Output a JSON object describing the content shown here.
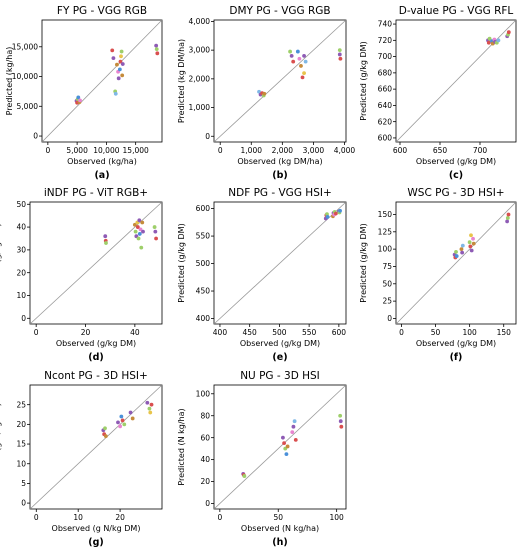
{
  "chart_data": [
    {
      "panel": "(a)",
      "type": "scatter",
      "title": "FY PG - VGG RGB",
      "xlabel": "Observed (kg/ha)",
      "ylabel": "Predicted (kg/ha)",
      "xlim": [
        -1000,
        19500
      ],
      "ylim": [
        -1000,
        19500
      ],
      "xticks": [
        "0",
        "5,000",
        "10,000",
        "15,000"
      ],
      "xtick_values": [
        0,
        5000,
        10000,
        15000
      ],
      "yticks": [
        "0",
        "5,000",
        "10,000",
        "15,000"
      ],
      "ytick_values": [
        0,
        5000,
        10000,
        15000
      ],
      "reference_line": "1:1",
      "points": [
        {
          "x": 4900,
          "y": 5900,
          "c": "#8e5bb5"
        },
        {
          "x": 5000,
          "y": 5600,
          "c": "#d94f4f"
        },
        {
          "x": 5100,
          "y": 6200,
          "c": "#9ecf6a"
        },
        {
          "x": 5200,
          "y": 6500,
          "c": "#4a90d9"
        },
        {
          "x": 5400,
          "y": 5700,
          "c": "#c58b3b"
        },
        {
          "x": 5500,
          "y": 6000,
          "c": "#e884d0"
        },
        {
          "x": 11000,
          "y": 14400,
          "c": "#d94f4f"
        },
        {
          "x": 11200,
          "y": 13100,
          "c": "#8e5bb5"
        },
        {
          "x": 11500,
          "y": 7500,
          "c": "#9ecf6a"
        },
        {
          "x": 11600,
          "y": 7100,
          "c": "#7fb8e6"
        },
        {
          "x": 11800,
          "y": 12000,
          "c": "#c58b3b"
        },
        {
          "x": 12000,
          "y": 10800,
          "c": "#e884d0"
        },
        {
          "x": 12100,
          "y": 9700,
          "c": "#8e5bb5"
        },
        {
          "x": 12300,
          "y": 11200,
          "c": "#4a90d9"
        },
        {
          "x": 12400,
          "y": 12500,
          "c": "#d94f4f"
        },
        {
          "x": 12500,
          "y": 13400,
          "c": "#e8c44a"
        },
        {
          "x": 12600,
          "y": 14200,
          "c": "#9ecf6a"
        },
        {
          "x": 12700,
          "y": 10200,
          "c": "#c58b3b"
        },
        {
          "x": 12800,
          "y": 12100,
          "c": "#8e5bb5"
        },
        {
          "x": 18500,
          "y": 15200,
          "c": "#8e5bb5"
        },
        {
          "x": 18600,
          "y": 14600,
          "c": "#9ecf6a"
        },
        {
          "x": 18700,
          "y": 13900,
          "c": "#d94f4f"
        }
      ]
    },
    {
      "panel": "(b)",
      "type": "scatter",
      "title": "DMY PG - VGG RGB",
      "xlabel": "Observed (kg DM/ha)",
      "ylabel": "Predicted (kg DM/ha)",
      "xlim": [
        -200,
        4050
      ],
      "ylim": [
        -200,
        4050
      ],
      "xticks": [
        "0",
        "1,000",
        "2,000",
        "3,000",
        "4,000"
      ],
      "xtick_values": [
        0,
        1000,
        2000,
        3000,
        4000
      ],
      "yticks": [
        "0",
        "1,000",
        "2,000",
        "3,000",
        "4,000"
      ],
      "ytick_values": [
        0,
        1000,
        2000,
        3000,
        4000
      ],
      "reference_line": "1:1",
      "points": [
        {
          "x": 1250,
          "y": 1550,
          "c": "#7fb8e6"
        },
        {
          "x": 1300,
          "y": 1450,
          "c": "#8e5bb5"
        },
        {
          "x": 1350,
          "y": 1500,
          "c": "#d94f4f"
        },
        {
          "x": 1400,
          "y": 1420,
          "c": "#9ecf6a"
        },
        {
          "x": 1420,
          "y": 1480,
          "c": "#c58b3b"
        },
        {
          "x": 2250,
          "y": 2950,
          "c": "#9ecf6a"
        },
        {
          "x": 2300,
          "y": 2800,
          "c": "#8e5bb5"
        },
        {
          "x": 2350,
          "y": 2600,
          "c": "#d94f4f"
        },
        {
          "x": 2500,
          "y": 2950,
          "c": "#4a90d9"
        },
        {
          "x": 2550,
          "y": 2700,
          "c": "#e884d0"
        },
        {
          "x": 2600,
          "y": 2450,
          "c": "#c58b3b"
        },
        {
          "x": 2650,
          "y": 2050,
          "c": "#d94f4f"
        },
        {
          "x": 2700,
          "y": 2200,
          "c": "#e8c44a"
        },
        {
          "x": 2700,
          "y": 2800,
          "c": "#8e5bb5"
        },
        {
          "x": 2750,
          "y": 2600,
          "c": "#7fb8e6"
        },
        {
          "x": 3850,
          "y": 3000,
          "c": "#9ecf6a"
        },
        {
          "x": 3850,
          "y": 2850,
          "c": "#8e5bb5"
        },
        {
          "x": 3870,
          "y": 2700,
          "c": "#d94f4f"
        }
      ]
    },
    {
      "panel": "(c)",
      "type": "scatter",
      "title": "D-value PG - VGG RFL",
      "xlabel": "Observed (g/kg DM)",
      "ylabel": "Predicted (g/kg DM)",
      "xlim": [
        595,
        745
      ],
      "ylim": [
        595,
        745
      ],
      "xticks": [
        "600",
        "650",
        "700"
      ],
      "xtick_values": [
        600,
        650,
        700
      ],
      "yticks": [
        "600",
        "620",
        "640",
        "660",
        "680",
        "700",
        "720",
        "740"
      ],
      "ytick_values": [
        600,
        620,
        640,
        660,
        680,
        700,
        720,
        740
      ],
      "reference_line": "1:1",
      "points": [
        {
          "x": 710,
          "y": 720,
          "c": "#8e5bb5"
        },
        {
          "x": 711,
          "y": 717,
          "c": "#d94f4f"
        },
        {
          "x": 712,
          "y": 722,
          "c": "#9ecf6a"
        },
        {
          "x": 715,
          "y": 719,
          "c": "#4a90d9"
        },
        {
          "x": 716,
          "y": 716,
          "c": "#c58b3b"
        },
        {
          "x": 718,
          "y": 721,
          "c": "#e884d0"
        },
        {
          "x": 719,
          "y": 718,
          "c": "#8e5bb5"
        },
        {
          "x": 721,
          "y": 717,
          "c": "#9ecf6a"
        },
        {
          "x": 723,
          "y": 720,
          "c": "#7fb8e6"
        },
        {
          "x": 734,
          "y": 725,
          "c": "#8e5bb5"
        },
        {
          "x": 735,
          "y": 727,
          "c": "#9ecf6a"
        },
        {
          "x": 736,
          "y": 730,
          "c": "#d94f4f"
        }
      ]
    },
    {
      "panel": "(d)",
      "type": "scatter",
      "title": "iNDF PG - ViT RGB+",
      "xlabel": "Observed (g/kg DM)",
      "ylabel": "Predicted (g/kg DM)",
      "xlim": [
        -2.5,
        51
      ],
      "ylim": [
        -2.5,
        51
      ],
      "xticks": [
        "0",
        "20",
        "40"
      ],
      "xtick_values": [
        0,
        20,
        40
      ],
      "yticks": [
        "0",
        "10",
        "20",
        "30",
        "40",
        "50"
      ],
      "ytick_values": [
        0,
        10,
        20,
        30,
        40,
        50
      ],
      "reference_line": "1:1",
      "points": [
        {
          "x": 28,
          "y": 36,
          "c": "#8e5bb5"
        },
        {
          "x": 28.2,
          "y": 34,
          "c": "#d94f4f"
        },
        {
          "x": 28.3,
          "y": 33,
          "c": "#9ecf6a"
        },
        {
          "x": 40,
          "y": 41,
          "c": "#c58b3b"
        },
        {
          "x": 40.3,
          "y": 38,
          "c": "#9ecf6a"
        },
        {
          "x": 40.6,
          "y": 36,
          "c": "#8e5bb5"
        },
        {
          "x": 41,
          "y": 42,
          "c": "#e8c44a"
        },
        {
          "x": 41.2,
          "y": 40,
          "c": "#d94f4f"
        },
        {
          "x": 41.5,
          "y": 35,
          "c": "#9ecf6a"
        },
        {
          "x": 41.8,
          "y": 43,
          "c": "#8e5bb5"
        },
        {
          "x": 42,
          "y": 37,
          "c": "#4a90d9"
        },
        {
          "x": 42.3,
          "y": 39,
          "c": "#e884d0"
        },
        {
          "x": 42.6,
          "y": 31,
          "c": "#9ecf6a"
        },
        {
          "x": 43,
          "y": 42,
          "c": "#c58b3b"
        },
        {
          "x": 43.3,
          "y": 38,
          "c": "#8e5bb5"
        },
        {
          "x": 48,
          "y": 40,
          "c": "#9ecf6a"
        },
        {
          "x": 48.3,
          "y": 38,
          "c": "#8e5bb5"
        },
        {
          "x": 48.6,
          "y": 35,
          "c": "#d94f4f"
        }
      ]
    },
    {
      "panel": "(e)",
      "type": "scatter",
      "title": "NDF PG - VGG HSI+",
      "xlabel": "Observed (g/kg DM)",
      "ylabel": "Predicted (g/kg DM)",
      "xlim": [
        390,
        612
      ],
      "ylim": [
        390,
        612
      ],
      "xticks": [
        "400",
        "450",
        "500",
        "550",
        "600"
      ],
      "xtick_values": [
        400,
        450,
        500,
        550,
        600
      ],
      "yticks": [
        "400",
        "450",
        "500",
        "550",
        "600"
      ],
      "ytick_values": [
        400,
        450,
        500,
        550,
        600
      ],
      "reference_line": "1:1",
      "points": [
        {
          "x": 578,
          "y": 582,
          "c": "#8e5bb5"
        },
        {
          "x": 579,
          "y": 588,
          "c": "#d94f4f"
        },
        {
          "x": 580,
          "y": 590,
          "c": "#9ecf6a"
        },
        {
          "x": 581,
          "y": 585,
          "c": "#4a90d9"
        },
        {
          "x": 590,
          "y": 586,
          "c": "#c58b3b"
        },
        {
          "x": 591,
          "y": 592,
          "c": "#8e5bb5"
        },
        {
          "x": 592,
          "y": 589,
          "c": "#e884d0"
        },
        {
          "x": 593,
          "y": 594,
          "c": "#9ecf6a"
        },
        {
          "x": 595,
          "y": 591,
          "c": "#d94f4f"
        },
        {
          "x": 600,
          "y": 595,
          "c": "#8e5bb5"
        },
        {
          "x": 601,
          "y": 593,
          "c": "#9ecf6a"
        },
        {
          "x": 602,
          "y": 596,
          "c": "#4a90d9"
        }
      ]
    },
    {
      "panel": "(f)",
      "type": "scatter",
      "title": "WSC PG - 3D HSI+",
      "xlabel": "Observed (g/kg DM)",
      "ylabel": "Predicted (g/kg DM)",
      "xlim": [
        -8,
        168
      ],
      "ylim": [
        -8,
        168
      ],
      "xticks": [
        "0",
        "50",
        "100",
        "150"
      ],
      "xtick_values": [
        0,
        50,
        100,
        150
      ],
      "yticks": [
        "0",
        "25",
        "50",
        "75",
        "100",
        "125",
        "150"
      ],
      "ytick_values": [
        0,
        25,
        50,
        75,
        100,
        125,
        150
      ],
      "reference_line": "1:1",
      "points": [
        {
          "x": 78,
          "y": 92,
          "c": "#8e5bb5"
        },
        {
          "x": 79,
          "y": 88,
          "c": "#d94f4f"
        },
        {
          "x": 80,
          "y": 96,
          "c": "#9ecf6a"
        },
        {
          "x": 81,
          "y": 90,
          "c": "#4a90d9"
        },
        {
          "x": 88,
          "y": 100,
          "c": "#c58b3b"
        },
        {
          "x": 89,
          "y": 95,
          "c": "#8e5bb5"
        },
        {
          "x": 90,
          "y": 105,
          "c": "#7fb8e6"
        },
        {
          "x": 100,
          "y": 110,
          "c": "#9ecf6a"
        },
        {
          "x": 101,
          "y": 104,
          "c": "#d94f4f"
        },
        {
          "x": 102,
          "y": 120,
          "c": "#e8c44a"
        },
        {
          "x": 103,
          "y": 98,
          "c": "#8e5bb5"
        },
        {
          "x": 105,
          "y": 115,
          "c": "#e884d0"
        },
        {
          "x": 106,
          "y": 108,
          "c": "#c58b3b"
        },
        {
          "x": 155,
          "y": 140,
          "c": "#8e5bb5"
        },
        {
          "x": 156,
          "y": 145,
          "c": "#9ecf6a"
        },
        {
          "x": 157,
          "y": 150,
          "c": "#d94f4f"
        }
      ]
    },
    {
      "panel": "(g)",
      "type": "scatter",
      "title": "Ncont PG - 3D HSI+",
      "xlabel": "Observed (g N/kg DM)",
      "ylabel": "Predicted (g N/kg DM)",
      "xlim": [
        -1.5,
        30
      ],
      "ylim": [
        -1.5,
        30
      ],
      "xticks": [
        "0",
        "10",
        "20"
      ],
      "xtick_values": [
        0,
        10,
        20
      ],
      "yticks": [
        "0",
        "5",
        "10",
        "15",
        "20",
        "25"
      ],
      "ytick_values": [
        0,
        5,
        10,
        15,
        20,
        25
      ],
      "reference_line": "1:1",
      "points": [
        {
          "x": 16,
          "y": 18.5,
          "c": "#8e5bb5"
        },
        {
          "x": 16.2,
          "y": 17.5,
          "c": "#d94f4f"
        },
        {
          "x": 16.4,
          "y": 19,
          "c": "#9ecf6a"
        },
        {
          "x": 16.6,
          "y": 17,
          "c": "#c58b3b"
        },
        {
          "x": 19.5,
          "y": 20.5,
          "c": "#8e5bb5"
        },
        {
          "x": 20,
          "y": 19.5,
          "c": "#e884d0"
        },
        {
          "x": 20.3,
          "y": 22,
          "c": "#4a90d9"
        },
        {
          "x": 20.6,
          "y": 21,
          "c": "#d94f4f"
        },
        {
          "x": 21,
          "y": 20,
          "c": "#9ecf6a"
        },
        {
          "x": 22.5,
          "y": 23,
          "c": "#8e5bb5"
        },
        {
          "x": 23,
          "y": 21.5,
          "c": "#c58b3b"
        },
        {
          "x": 26.5,
          "y": 25.5,
          "c": "#8e5bb5"
        },
        {
          "x": 27,
          "y": 24,
          "c": "#9ecf6a"
        },
        {
          "x": 27.2,
          "y": 23,
          "c": "#e8c44a"
        },
        {
          "x": 27.5,
          "y": 25,
          "c": "#d94f4f"
        }
      ]
    },
    {
      "panel": "(h)",
      "type": "scatter",
      "title": "NU PG - 3D HSI",
      "xlabel": "Observed (N kg/ha)",
      "ylabel": "Predicted (N kg/ha)",
      "xlim": [
        -5,
        108
      ],
      "ylim": [
        -5,
        108
      ],
      "xticks": [
        "0",
        "50",
        "100"
      ],
      "xtick_values": [
        0,
        50,
        100
      ],
      "yticks": [
        "0",
        "20",
        "40",
        "60",
        "80",
        "100"
      ],
      "ytick_values": [
        0,
        20,
        40,
        60,
        80,
        100
      ],
      "reference_line": "1:1",
      "points": [
        {
          "x": 20,
          "y": 27,
          "c": "#8e5bb5"
        },
        {
          "x": 20.5,
          "y": 26,
          "c": "#d94f4f"
        },
        {
          "x": 21,
          "y": 25,
          "c": "#9ecf6a"
        },
        {
          "x": 54,
          "y": 60,
          "c": "#8e5bb5"
        },
        {
          "x": 55,
          "y": 55,
          "c": "#d94f4f"
        },
        {
          "x": 56,
          "y": 50,
          "c": "#9ecf6a"
        },
        {
          "x": 57,
          "y": 45,
          "c": "#4a90d9"
        },
        {
          "x": 58,
          "y": 52,
          "c": "#c58b3b"
        },
        {
          "x": 62,
          "y": 65,
          "c": "#e884d0"
        },
        {
          "x": 63,
          "y": 70,
          "c": "#8e5bb5"
        },
        {
          "x": 64,
          "y": 75,
          "c": "#7fb8e6"
        },
        {
          "x": 65,
          "y": 58,
          "c": "#d94f4f"
        },
        {
          "x": 103,
          "y": 80,
          "c": "#9ecf6a"
        },
        {
          "x": 103.5,
          "y": 75,
          "c": "#8e5bb5"
        },
        {
          "x": 104,
          "y": 70,
          "c": "#d94f4f"
        }
      ]
    }
  ]
}
